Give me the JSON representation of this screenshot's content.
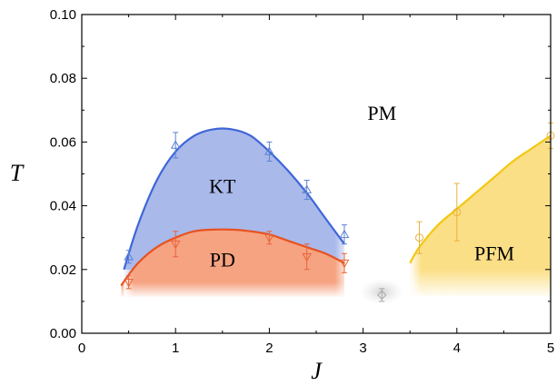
{
  "chart_data": {
    "type": "scatter",
    "title": "",
    "xlabel": "J",
    "ylabel": "T",
    "xlim": [
      0,
      5
    ],
    "ylim": [
      0,
      0.1
    ],
    "xticks": [
      0,
      1,
      2,
      3,
      4,
      5
    ],
    "xtick_labels": [
      "0",
      "1",
      "2",
      "3",
      "4",
      "5"
    ],
    "yticks": [
      0,
      0.02,
      0.04,
      0.06,
      0.08,
      0.1
    ],
    "ytick_labels": [
      "0.00",
      "0.02",
      "0.04",
      "0.06",
      "0.08",
      "0.10"
    ],
    "grid": false,
    "legend": "none",
    "regions": [
      {
        "label": "PM",
        "x": 3.2,
        "y": 0.067,
        "color": ""
      },
      {
        "label": "KT",
        "x": 1.5,
        "y": 0.044,
        "color": "#a9b9ea"
      },
      {
        "label": "PD",
        "x": 1.5,
        "y": 0.021,
        "color": "#f6a382"
      },
      {
        "label": "PFM",
        "x": 4.4,
        "y": 0.023,
        "color": "#fbdf86"
      }
    ],
    "series": [
      {
        "marker": "triangle-up",
        "color": "#5b82d6",
        "x": [
          0.5,
          1.0,
          2.0,
          2.4,
          2.8
        ],
        "y": [
          0.024,
          0.059,
          0.057,
          0.045,
          0.031
        ],
        "err": [
          0.002,
          0.004,
          0.003,
          0.003,
          0.003
        ]
      },
      {
        "marker": "triangle-down",
        "color": "#e8643a",
        "x": [
          0.5,
          1.0,
          2.0,
          2.4,
          2.8
        ],
        "y": [
          0.016,
          0.028,
          0.03,
          0.024,
          0.022
        ],
        "err": [
          0.002,
          0.004,
          0.002,
          0.004,
          0.003
        ]
      },
      {
        "marker": "diamond",
        "color": "#a8a8a8",
        "x": [
          3.2
        ],
        "y": [
          0.012
        ],
        "err": [
          0.002
        ]
      },
      {
        "marker": "circle",
        "color": "#e9b13d",
        "x": [
          3.6,
          4.0,
          5.0
        ],
        "y": [
          0.03,
          0.038,
          0.062
        ],
        "err": [
          0.005,
          0.009,
          0.004
        ]
      }
    ],
    "curves": [
      {
        "boundary": "KT",
        "color": "#3f66d8",
        "x": [
          0.45,
          0.6,
          0.8,
          1.0,
          1.2,
          1.4,
          1.6,
          1.8,
          2.0,
          2.2,
          2.4,
          2.6,
          2.8
        ],
        "y": [
          0.02,
          0.034,
          0.048,
          0.057,
          0.062,
          0.064,
          0.064,
          0.062,
          0.057,
          0.051,
          0.044,
          0.036,
          0.028
        ]
      },
      {
        "boundary": "PD",
        "color": "#e8521f",
        "x": [
          0.42,
          0.6,
          0.8,
          1.0,
          1.2,
          1.4,
          1.6,
          1.8,
          2.0,
          2.2,
          2.4,
          2.6,
          2.8
        ],
        "y": [
          0.015,
          0.022,
          0.027,
          0.03,
          0.032,
          0.0325,
          0.0325,
          0.032,
          0.031,
          0.029,
          0.027,
          0.025,
          0.022
        ]
      },
      {
        "boundary": "PFM",
        "color": "#f2c80f",
        "x": [
          3.5,
          3.6,
          3.8,
          4.0,
          4.2,
          4.4,
          4.6,
          4.8,
          5.0
        ],
        "y": [
          0.022,
          0.027,
          0.034,
          0.039,
          0.044,
          0.049,
          0.054,
          0.058,
          0.062
        ]
      }
    ]
  }
}
